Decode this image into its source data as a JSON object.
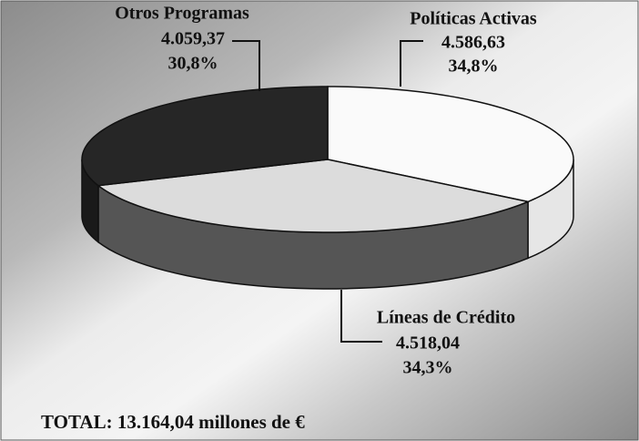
{
  "chart_data": {
    "type": "pie",
    "categories": [
      "Políticas Activas",
      "Líneas de Crédito",
      "Otros Programas"
    ],
    "values": [
      4586.63,
      4518.04,
      4059.37
    ],
    "value_labels": [
      "4.586,63",
      "4.518,04",
      "4.059,37"
    ],
    "percents": [
      34.8,
      34.3,
      30.8
    ],
    "percent_labels": [
      "34,8%",
      "34,3%",
      "30,8%"
    ],
    "colors": [
      "#fafafa",
      "#dcdcdc",
      "#262626"
    ],
    "side_colors": [
      "#e6e6e6",
      "#555555",
      "#1a1a1a"
    ],
    "annotation": "TOTAL: 13.164,04 millones de €"
  }
}
